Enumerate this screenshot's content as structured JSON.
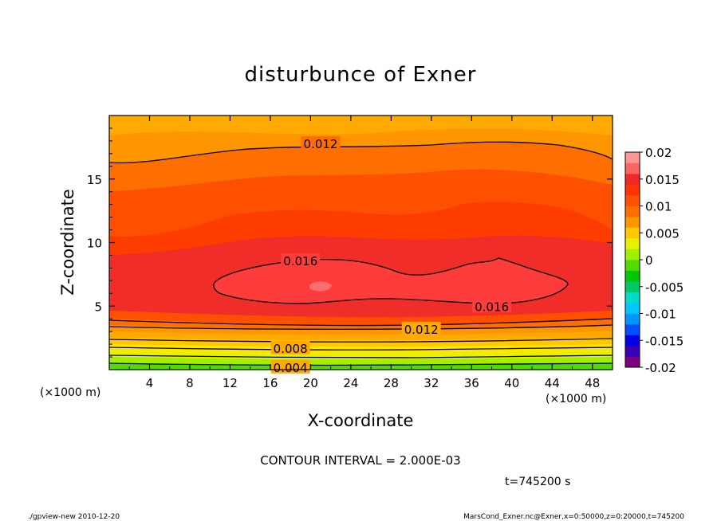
{
  "chart_data": {
    "type": "contour",
    "title": "disturbunce of Exner",
    "xlabel": "X-coordinate",
    "ylabel": "Z-coordinate",
    "x_unit": "(×1000 m)",
    "y_unit": "(×1000 m)",
    "xlim": [
      0,
      50
    ],
    "ylim": [
      0,
      20
    ],
    "x_ticks": [
      4,
      8,
      12,
      16,
      20,
      24,
      28,
      32,
      36,
      40,
      44,
      48
    ],
    "y_ticks": [
      5,
      10,
      15
    ],
    "contour_interval_text": "CONTOUR INTERVAL = 2.000E-03",
    "time_text": "t=745200 s",
    "colorbar": {
      "min": -0.02,
      "max": 0.02,
      "labels": [
        "0.02",
        "0.015",
        "0.01",
        "0.005",
        "0",
        "-0.005",
        "-0.01",
        "-0.015",
        "-0.02"
      ],
      "colors": [
        "#7e007e",
        "#3c00b4",
        "#0000e6",
        "#0050ff",
        "#0096ff",
        "#00c8ff",
        "#00dcc8",
        "#00c864",
        "#00c800",
        "#50dc00",
        "#a0f000",
        "#e6f000",
        "#ffc800",
        "#ff9600",
        "#ff6e00",
        "#ff5000",
        "#ff3200",
        "#f02828",
        "#ff6464",
        "#ff9696"
      ]
    },
    "contour_labels": [
      {
        "text": "0.012",
        "x": 21,
        "z": 17.8
      },
      {
        "text": "0.016",
        "x": 19,
        "z": 8.6
      },
      {
        "text": "0.016",
        "x": 38,
        "z": 5.0
      },
      {
        "text": "0.012",
        "x": 31,
        "z": 3.2
      },
      {
        "text": "0.008",
        "x": 18,
        "z": 1.7
      },
      {
        "text": "0.004",
        "x": 18,
        "z": 0.2
      }
    ]
  },
  "footer": {
    "left": "./gpview-new   2010-12-20",
    "right": "MarsCond_Exner.nc@Exner,x=0:50000,z=0:20000,t=745200"
  }
}
